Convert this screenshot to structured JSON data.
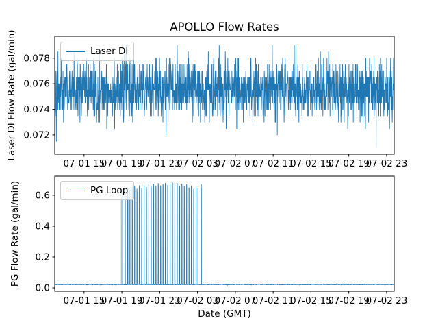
{
  "figure": {
    "kind": "matplotlib-figure",
    "background": "#ffffff",
    "accent_color": "#1f77b4",
    "axis_color": "#000000",
    "legend_border_color": "#cccccc"
  },
  "chart_data": [
    {
      "type": "line",
      "title": "APOLLO Flow Rates",
      "ylabel": "Laser DI Flow Rate (gal/min)",
      "xlabel": "",
      "ylim": [
        0.0705,
        0.0797
      ],
      "yticks": [
        0.072,
        0.074,
        0.076,
        0.078
      ],
      "ytick_labels": [
        "0.072",
        "0.074",
        "0.076",
        "0.078"
      ],
      "xlim_hours": [
        11.9,
        47.8
      ],
      "xtick_hours": [
        15,
        19,
        23,
        27,
        31,
        35,
        39,
        43,
        47
      ],
      "xtick_labels": [
        "07-01 15",
        "07-01 19",
        "07-01 23",
        "07-02 03",
        "07-02 07",
        "07-02 11",
        "07-02 15",
        "07-02 19",
        "07-02 23"
      ],
      "grid": false,
      "legend_position": "upper left",
      "series": [
        {
          "name": "Laser DI",
          "color": "#1f77b4",
          "signal": {
            "kind": "quantized-noise",
            "mean": 0.0755,
            "sigma": 0.00115,
            "quantum": 0.0005,
            "min": 0.071,
            "max": 0.079,
            "samples": 1900,
            "seed": 42
          },
          "events": [
            {
              "hour": 24.85,
              "value": 0.079
            },
            {
              "hour": 29.3,
              "value": 0.079
            },
            {
              "hour": 34.9,
              "value": 0.079
            },
            {
              "hour": 37.4,
              "value": 0.079
            },
            {
              "hour": 40.0,
              "value": 0.0785
            },
            {
              "hour": 45.9,
              "value": 0.071
            },
            {
              "hour": 47.3,
              "value": 0.0725
            }
          ]
        }
      ]
    },
    {
      "type": "line",
      "title": "",
      "ylabel": "PG Flow Rate (gal/min)",
      "xlabel": "Date (GMT)",
      "ylim": [
        -0.022,
        0.724
      ],
      "yticks": [
        0.0,
        0.2,
        0.4,
        0.6
      ],
      "ytick_labels": [
        "0.0",
        "0.2",
        "0.4",
        "0.6"
      ],
      "xlim_hours": [
        11.9,
        47.8
      ],
      "xtick_hours": [
        15,
        19,
        23,
        27,
        31,
        35,
        39,
        43,
        47
      ],
      "xtick_labels": [
        "07-01 15",
        "07-01 19",
        "07-01 23",
        "07-02 03",
        "07-02 07",
        "07-02 11",
        "07-02 15",
        "07-02 19",
        "07-02 23"
      ],
      "grid": false,
      "legend_position": "upper left",
      "series": [
        {
          "name": "PG Loop",
          "color": "#1f77b4",
          "signal": {
            "kind": "noise",
            "mean": 0.022,
            "sigma": 0.0012,
            "samples": 1400,
            "seed": 7
          },
          "spike_burst": {
            "start_hour": 19.0,
            "end_hour": 27.4,
            "baseline": 0.022,
            "spikes": [
              [
                19.35,
                0.625
              ],
              [
                19.6,
                0.648
              ],
              [
                19.85,
                0.632
              ],
              [
                20.1,
                0.652
              ],
              [
                20.35,
                0.658
              ],
              [
                20.6,
                0.64
              ],
              [
                20.85,
                0.662
              ],
              [
                21.1,
                0.646
              ],
              [
                21.35,
                0.666
              ],
              [
                21.6,
                0.652
              ],
              [
                21.85,
                0.668
              ],
              [
                22.1,
                0.655
              ],
              [
                22.35,
                0.672
              ],
              [
                22.6,
                0.66
              ],
              [
                22.85,
                0.676
              ],
              [
                23.1,
                0.662
              ],
              [
                23.35,
                0.67
              ],
              [
                23.6,
                0.678
              ],
              [
                23.85,
                0.664
              ],
              [
                24.1,
                0.674
              ],
              [
                24.35,
                0.682
              ],
              [
                24.6,
                0.668
              ],
              [
                24.85,
                0.678
              ],
              [
                25.1,
                0.66
              ],
              [
                25.35,
                0.673
              ],
              [
                25.6,
                0.656
              ],
              [
                25.85,
                0.669
              ],
              [
                26.1,
                0.648
              ],
              [
                26.35,
                0.661
              ],
              [
                26.6,
                0.638
              ],
              [
                26.85,
                0.652
              ],
              [
                27.05,
                0.643
              ],
              [
                27.4,
                0.67
              ]
            ],
            "pale_spikes": [
              [
                19.0,
                0.64,
                3.0
              ],
              [
                19.72,
                0.65,
                1.8
              ]
            ]
          }
        }
      ]
    }
  ]
}
